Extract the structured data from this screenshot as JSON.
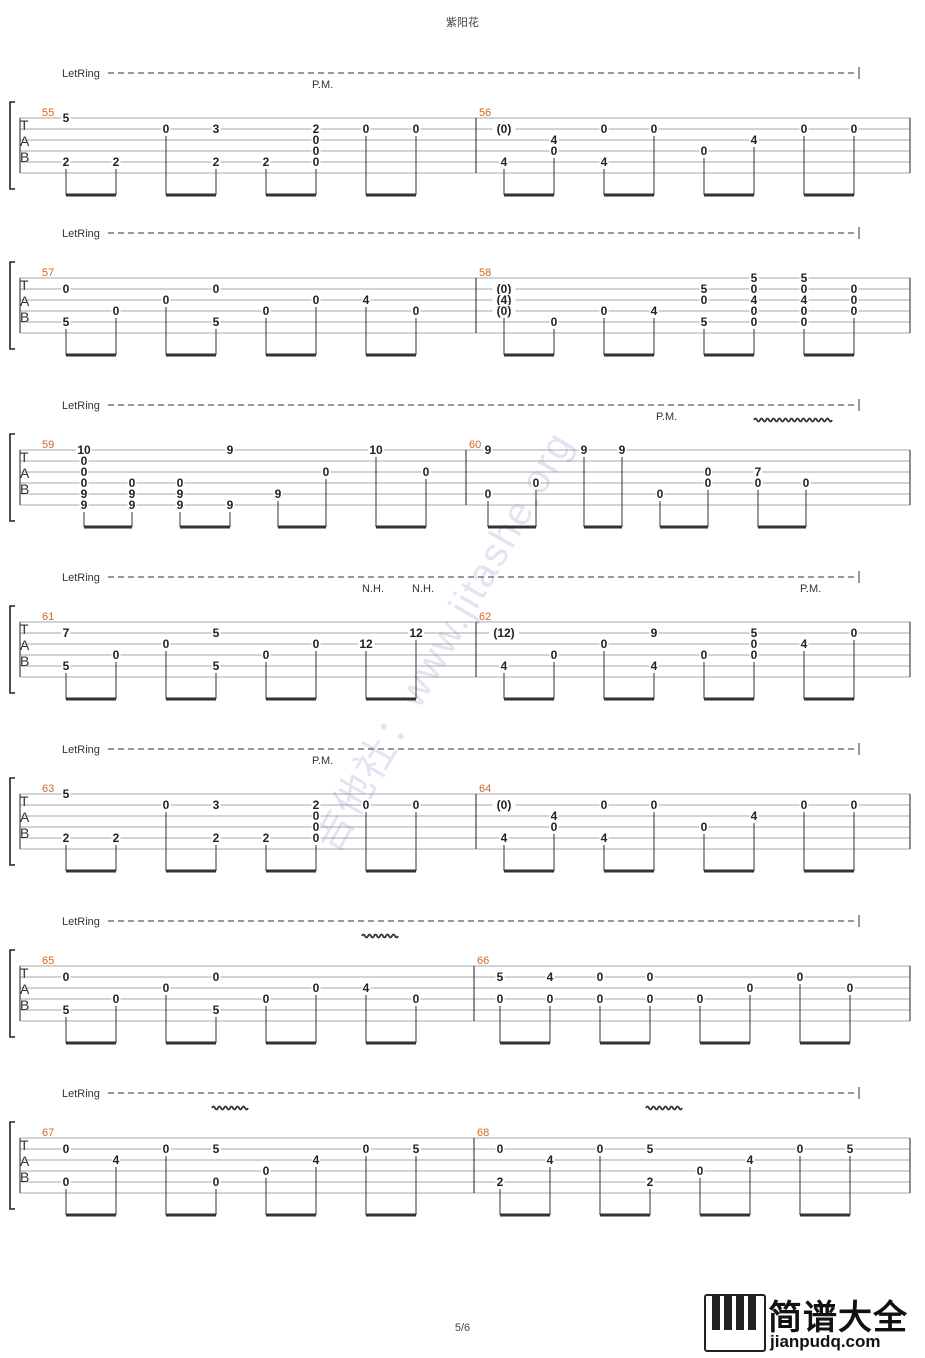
{
  "page": {
    "title": "紫阳花",
    "page_number": "5/6",
    "watermark": "吉他社：www.jitashe.org",
    "logo": {
      "name": "简谱大全",
      "url": "jianpudq.com"
    },
    "colors": {
      "line": "#8a8a8a",
      "text": "#222222",
      "measure_number": "#d2691e"
    }
  },
  "systems": [
    {
      "letring": "LetRing",
      "measures": [
        "55",
        "56"
      ],
      "annotations": [
        {
          "text": "P.M.",
          "beat": 5
        }
      ],
      "vibrato": [],
      "beats": [
        [
          "5",
          "",
          "",
          "",
          "2",
          ""
        ],
        [
          "",
          "",
          "",
          "",
          "2",
          ""
        ],
        [
          "",
          "0",
          "",
          "",
          "",
          ""
        ],
        [
          "",
          "3",
          "",
          "",
          "2",
          ""
        ],
        [
          "",
          "",
          "",
          "",
          "2",
          ""
        ],
        [
          "",
          "2",
          "0",
          "0",
          "0",
          ""
        ],
        [
          "",
          "0",
          "",
          "",
          "",
          ""
        ],
        [
          "",
          "0",
          "",
          "",
          "",
          ""
        ],
        [
          "",
          "(0)",
          "",
          "",
          "4",
          ""
        ],
        [
          "",
          "",
          "4",
          "0",
          "",
          ""
        ],
        [
          "",
          "0",
          "",
          "",
          "4",
          ""
        ],
        [
          "",
          "0",
          "",
          "",
          "",
          ""
        ],
        [
          "",
          "",
          "",
          "0",
          "",
          ""
        ],
        [
          "",
          "",
          "4",
          "",
          "",
          ""
        ],
        [
          "",
          "0",
          "",
          "",
          "",
          ""
        ],
        [
          "",
          "0",
          "",
          "",
          "",
          ""
        ]
      ]
    },
    {
      "letring": "LetRing",
      "measures": [
        "57",
        "58"
      ],
      "annotations": [],
      "vibrato": [],
      "beats": [
        [
          "",
          "0",
          "",
          "",
          "5",
          ""
        ],
        [
          "",
          "",
          "",
          "0",
          "",
          ""
        ],
        [
          "",
          "",
          "0",
          "",
          "",
          ""
        ],
        [
          "",
          "0",
          "",
          "",
          "5",
          ""
        ],
        [
          "",
          "",
          "",
          "0",
          "",
          ""
        ],
        [
          "",
          "",
          "0",
          "",
          "",
          ""
        ],
        [
          "",
          "",
          "4",
          "",
          "",
          ""
        ],
        [
          "",
          "",
          "",
          "0",
          "",
          ""
        ],
        [
          "",
          "(0)",
          "(4)",
          "(0)",
          "",
          ""
        ],
        [
          "",
          "",
          "",
          "",
          "0",
          ""
        ],
        [
          "",
          "",
          "",
          "0",
          "",
          ""
        ],
        [
          "",
          "",
          "",
          "4",
          "",
          ""
        ],
        [
          "",
          "5",
          "0",
          "",
          "5",
          ""
        ],
        [
          "5",
          "0",
          "4",
          "0",
          "0",
          ""
        ],
        [
          "5",
          "0",
          "4",
          "0",
          "0",
          ""
        ],
        [
          "",
          "0",
          "0",
          "0",
          "",
          ""
        ]
      ]
    },
    {
      "letring": "LetRing",
      "measures": [
        "59",
        "60"
      ],
      "annotations": [
        {
          "text": "P.M.",
          "beat": 12
        }
      ],
      "vibrato": [
        {
          "beat": 14,
          "width": 82
        }
      ],
      "beats": [
        [
          "10",
          "0",
          "0",
          "0",
          "9",
          "9"
        ],
        [
          "",
          "",
          "",
          "0",
          "9",
          "9"
        ],
        [
          "",
          "",
          "",
          "0",
          "9",
          "9"
        ],
        [
          "9",
          "",
          "",
          "",
          "",
          "9"
        ],
        [
          "",
          "",
          "",
          "",
          "9",
          ""
        ],
        [
          "",
          "",
          "0",
          "",
          "",
          ""
        ],
        [
          "10",
          "",
          "",
          "",
          "",
          ""
        ],
        [
          "",
          "",
          "0",
          "",
          "",
          ""
        ],
        [
          "9",
          "",
          "",
          "",
          "0",
          ""
        ],
        [
          "",
          "",
          "",
          "0",
          "",
          ""
        ],
        [
          "9",
          "",
          "",
          "",
          "",
          ""
        ],
        [
          "9",
          "",
          "",
          "",
          "",
          ""
        ],
        [
          "",
          "",
          "",
          "",
          "0",
          ""
        ],
        [
          "",
          "",
          "0",
          "0",
          "",
          ""
        ],
        [
          "",
          "",
          "7",
          "0",
          "",
          ""
        ],
        [
          "",
          "",
          "",
          "0",
          "",
          ""
        ]
      ]
    },
    {
      "letring": "LetRing",
      "measures": [
        "61",
        "62"
      ],
      "annotations": [
        {
          "text": "N.H.",
          "beat": 6
        },
        {
          "text": "N.H.",
          "beat": 7
        },
        {
          "text": "P.M.",
          "beat": 14
        }
      ],
      "vibrato": [],
      "beats": [
        [
          "",
          "7",
          "",
          "",
          "5",
          ""
        ],
        [
          "",
          "",
          "",
          "0",
          "",
          ""
        ],
        [
          "",
          "",
          "0",
          "",
          "",
          ""
        ],
        [
          "",
          "5",
          "",
          "",
          "5",
          ""
        ],
        [
          "",
          "",
          "",
          "0",
          "",
          ""
        ],
        [
          "",
          "",
          "0",
          "",
          "",
          ""
        ],
        [
          "",
          "",
          "12",
          "",
          "",
          ""
        ],
        [
          "",
          "12",
          "",
          "",
          "",
          ""
        ],
        [
          "",
          "(12)",
          "",
          "",
          "4",
          ""
        ],
        [
          "",
          "",
          "",
          "0",
          "",
          ""
        ],
        [
          "",
          "",
          "0",
          "",
          "",
          ""
        ],
        [
          "",
          "9",
          "",
          "",
          "4",
          ""
        ],
        [
          "",
          "",
          "",
          "0",
          "",
          ""
        ],
        [
          "",
          "5",
          "0",
          "0",
          "",
          ""
        ],
        [
          "",
          "",
          "4",
          "",
          "",
          ""
        ],
        [
          "",
          "0",
          "",
          "",
          "",
          ""
        ]
      ]
    },
    {
      "letring": "LetRing",
      "measures": [
        "63",
        "64"
      ],
      "annotations": [
        {
          "text": "P.M.",
          "beat": 5
        }
      ],
      "vibrato": [],
      "beats": [
        [
          "5",
          "",
          "",
          "",
          "2",
          ""
        ],
        [
          "",
          "",
          "",
          "",
          "2",
          ""
        ],
        [
          "",
          "0",
          "",
          "",
          "",
          ""
        ],
        [
          "",
          "3",
          "",
          "",
          "2",
          ""
        ],
        [
          "",
          "",
          "",
          "",
          "2",
          ""
        ],
        [
          "",
          "2",
          "0",
          "0",
          "0",
          ""
        ],
        [
          "",
          "0",
          "",
          "",
          "",
          ""
        ],
        [
          "",
          "0",
          "",
          "",
          "",
          ""
        ],
        [
          "",
          "(0)",
          "",
          "",
          "4",
          ""
        ],
        [
          "",
          "",
          "4",
          "0",
          "",
          ""
        ],
        [
          "",
          "0",
          "",
          "",
          "4",
          ""
        ],
        [
          "",
          "0",
          "",
          "",
          "",
          ""
        ],
        [
          "",
          "",
          "",
          "0",
          "",
          ""
        ],
        [
          "",
          "",
          "4",
          "",
          "",
          ""
        ],
        [
          "",
          "0",
          "",
          "",
          "",
          ""
        ],
        [
          "",
          "0",
          "",
          "",
          "",
          ""
        ]
      ]
    },
    {
      "letring": "LetRing",
      "measures": [
        "65",
        "66"
      ],
      "annotations": [],
      "vibrato": [
        {
          "beat": 6,
          "width": 38
        }
      ],
      "beats": [
        [
          "",
          "0",
          "",
          "",
          "5",
          ""
        ],
        [
          "",
          "",
          "",
          "0",
          "",
          ""
        ],
        [
          "",
          "",
          "0",
          "",
          "",
          ""
        ],
        [
          "",
          "0",
          "",
          "",
          "5",
          ""
        ],
        [
          "",
          "",
          "",
          "0",
          "",
          ""
        ],
        [
          "",
          "",
          "0",
          "",
          "",
          ""
        ],
        [
          "",
          "",
          "4",
          "",
          "",
          ""
        ],
        [
          "",
          "",
          "",
          "0",
          "",
          ""
        ],
        [
          "",
          "5",
          "",
          "0",
          "",
          ""
        ],
        [
          "",
          "4",
          "",
          "0",
          "",
          ""
        ],
        [
          "",
          "0",
          "",
          "0",
          "",
          ""
        ],
        [
          "",
          "0",
          "",
          "0",
          "",
          ""
        ],
        [
          "",
          "",
          "",
          "0",
          "",
          ""
        ],
        [
          "",
          "",
          "0",
          "",
          "",
          ""
        ],
        [
          "",
          "0",
          "",
          "",
          "",
          ""
        ],
        [
          "",
          "",
          "0",
          "",
          "",
          ""
        ]
      ]
    },
    {
      "letring": "LetRing",
      "measures": [
        "67",
        "68"
      ],
      "annotations": [],
      "vibrato": [
        {
          "beat": 3,
          "width": 38
        },
        {
          "beat": 11,
          "width": 38
        }
      ],
      "beats": [
        [
          "",
          "0",
          "",
          "",
          "0",
          ""
        ],
        [
          "",
          "",
          "4",
          "",
          "",
          ""
        ],
        [
          "",
          "0",
          "",
          "",
          "",
          ""
        ],
        [
          "",
          "5",
          "",
          "",
          "0",
          ""
        ],
        [
          "",
          "",
          "",
          "0",
          "",
          ""
        ],
        [
          "",
          "",
          "4",
          "",
          "",
          ""
        ],
        [
          "",
          "0",
          "",
          "",
          "",
          ""
        ],
        [
          "",
          "5",
          "",
          "",
          "",
          ""
        ],
        [
          "",
          "0",
          "",
          "",
          "2",
          ""
        ],
        [
          "",
          "",
          "4",
          "",
          "",
          ""
        ],
        [
          "",
          "0",
          "",
          "",
          "",
          ""
        ],
        [
          "",
          "5",
          "",
          "",
          "2",
          ""
        ],
        [
          "",
          "",
          "",
          "0",
          "",
          ""
        ],
        [
          "",
          "",
          "4",
          "",
          "",
          ""
        ],
        [
          "",
          "0",
          "",
          "",
          "",
          ""
        ],
        [
          "",
          "5",
          "",
          "",
          "",
          ""
        ]
      ]
    }
  ]
}
